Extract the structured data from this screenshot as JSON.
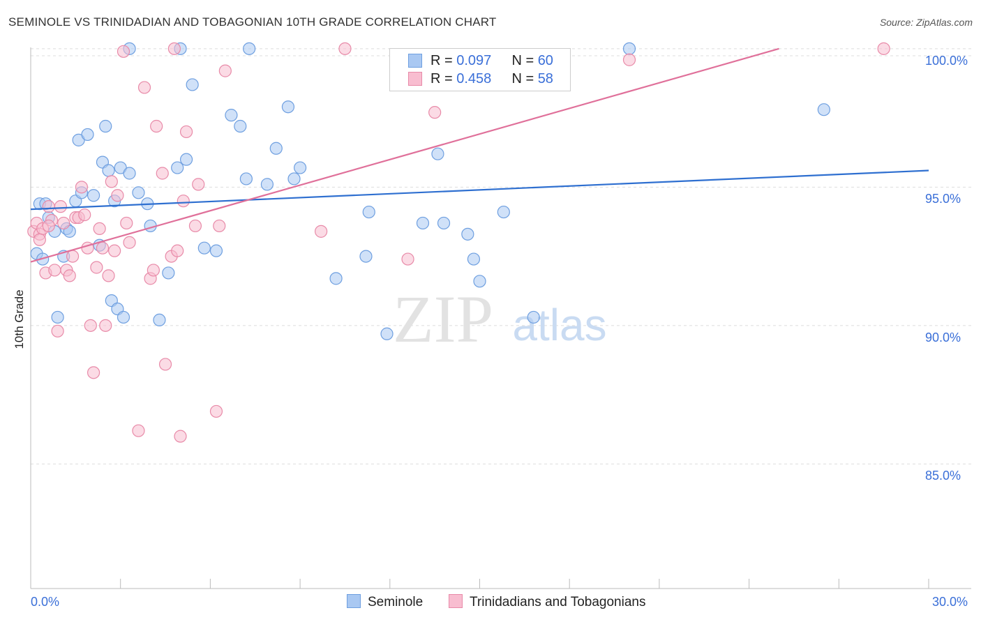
{
  "title": "SEMINOLE VS TRINIDADIAN AND TOBAGONIAN 10TH GRADE CORRELATION CHART",
  "source": "Source: ZipAtlas.com",
  "watermark": {
    "zip": "ZIP",
    "atlas": "atlas"
  },
  "legend": {
    "r_label": "R = ",
    "n_label": "N = ",
    "series": [
      {
        "name": "Seminole",
        "r": "0.097",
        "n": "60"
      },
      {
        "name": "Trinidadians and Tobagonians",
        "r": "0.458",
        "n": "58"
      }
    ]
  },
  "colors": {
    "seminole_fill": "#a9c8f2",
    "seminole_stroke": "#6e9fe0",
    "seminole_line": "#2e6fd0",
    "trini_fill": "#f8bdd0",
    "trini_stroke": "#e88aa8",
    "trini_line": "#e0709a",
    "axis_label": "#3a6fd8",
    "grid": "#dddddd"
  },
  "chart_data": {
    "type": "scatter",
    "title": "SEMINOLE VS TRINIDADIAN AND TOBAGONIAN 10TH GRADE CORRELATION CHART",
    "xlabel": "",
    "ylabel": "10th Grade",
    "xlim": [
      0,
      30
    ],
    "ylim": [
      80.5,
      100.5
    ],
    "x_tick_labels": [
      "0.0%",
      "30.0%"
    ],
    "y_ticks": [
      85,
      90,
      95,
      100
    ],
    "y_tick_labels": [
      "85.0%",
      "90.0%",
      "95.0%",
      "100.0%"
    ],
    "series": [
      {
        "name": "Seminole",
        "trend": {
          "x": [
            0,
            30
          ],
          "y": [
            94.2,
            95.6
          ]
        },
        "points": [
          [
            0.2,
            92.6
          ],
          [
            0.3,
            94.4
          ],
          [
            0.4,
            92.4
          ],
          [
            0.5,
            94.4
          ],
          [
            0.6,
            93.9
          ],
          [
            0.8,
            93.4
          ],
          [
            0.9,
            90.3
          ],
          [
            1.1,
            92.5
          ],
          [
            1.2,
            93.5
          ],
          [
            1.3,
            93.4
          ],
          [
            1.5,
            94.5
          ],
          [
            1.6,
            96.7
          ],
          [
            1.7,
            94.8
          ],
          [
            1.9,
            96.9
          ],
          [
            2.1,
            94.7
          ],
          [
            2.3,
            92.9
          ],
          [
            2.4,
            95.9
          ],
          [
            2.5,
            97.2
          ],
          [
            2.6,
            95.6
          ],
          [
            2.7,
            90.9
          ],
          [
            2.8,
            94.5
          ],
          [
            2.9,
            90.6
          ],
          [
            3.0,
            95.7
          ],
          [
            3.1,
            90.3
          ],
          [
            3.3,
            95.5
          ],
          [
            3.3,
            100.0
          ],
          [
            3.6,
            94.8
          ],
          [
            3.9,
            94.4
          ],
          [
            4.0,
            93.6
          ],
          [
            4.3,
            90.2
          ],
          [
            4.6,
            91.9
          ],
          [
            4.9,
            95.7
          ],
          [
            5.0,
            100.0
          ],
          [
            5.2,
            96.0
          ],
          [
            5.4,
            98.7
          ],
          [
            5.8,
            92.8
          ],
          [
            6.2,
            92.7
          ],
          [
            6.7,
            97.6
          ],
          [
            7.0,
            97.2
          ],
          [
            7.2,
            95.3
          ],
          [
            7.3,
            100.0
          ],
          [
            7.9,
            95.1
          ],
          [
            8.2,
            96.4
          ],
          [
            8.6,
            97.9
          ],
          [
            8.8,
            95.3
          ],
          [
            9.0,
            95.7
          ],
          [
            10.2,
            91.7
          ],
          [
            11.2,
            92.5
          ],
          [
            11.3,
            94.1
          ],
          [
            11.9,
            89.7
          ],
          [
            13.1,
            93.7
          ],
          [
            13.6,
            96.2
          ],
          [
            13.8,
            93.7
          ],
          [
            14.6,
            93.3
          ],
          [
            14.8,
            92.4
          ],
          [
            15.0,
            91.6
          ],
          [
            15.8,
            94.1
          ],
          [
            16.8,
            90.3
          ],
          [
            20.0,
            100.0
          ],
          [
            26.5,
            97.8
          ]
        ]
      },
      {
        "name": "Trinidadians and Tobagonians",
        "trend": {
          "x": [
            0,
            25
          ],
          "y": [
            92.3,
            100.0
          ]
        },
        "points": [
          [
            0.1,
            93.4
          ],
          [
            0.2,
            93.7
          ],
          [
            0.3,
            93.3
          ],
          [
            0.4,
            93.5
          ],
          [
            0.5,
            91.9
          ],
          [
            0.6,
            94.3
          ],
          [
            0.7,
            93.8
          ],
          [
            0.8,
            92.0
          ],
          [
            0.9,
            89.8
          ],
          [
            1.0,
            94.3
          ],
          [
            1.1,
            93.7
          ],
          [
            1.2,
            92.0
          ],
          [
            1.3,
            91.8
          ],
          [
            1.4,
            92.5
          ],
          [
            1.5,
            93.9
          ],
          [
            1.6,
            93.9
          ],
          [
            1.7,
            95.0
          ],
          [
            1.8,
            94.0
          ],
          [
            1.9,
            92.8
          ],
          [
            2.0,
            90.0
          ],
          [
            2.1,
            88.3
          ],
          [
            2.2,
            92.1
          ],
          [
            2.3,
            93.5
          ],
          [
            2.4,
            92.8
          ],
          [
            2.5,
            90.0
          ],
          [
            2.6,
            91.8
          ],
          [
            2.7,
            95.2
          ],
          [
            2.8,
            92.7
          ],
          [
            2.9,
            94.7
          ],
          [
            3.1,
            99.9
          ],
          [
            3.2,
            93.7
          ],
          [
            3.3,
            93.0
          ],
          [
            3.6,
            86.2
          ],
          [
            3.8,
            98.6
          ],
          [
            4.0,
            91.7
          ],
          [
            4.1,
            92.0
          ],
          [
            4.2,
            97.2
          ],
          [
            4.4,
            95.5
          ],
          [
            4.5,
            88.6
          ],
          [
            4.7,
            92.5
          ],
          [
            4.8,
            100.0
          ],
          [
            4.9,
            92.7
          ],
          [
            5.0,
            86.0
          ],
          [
            5.1,
            94.5
          ],
          [
            5.2,
            97.0
          ],
          [
            5.5,
            93.6
          ],
          [
            5.6,
            95.1
          ],
          [
            6.2,
            86.9
          ],
          [
            6.3,
            93.6
          ],
          [
            6.5,
            99.2
          ],
          [
            9.7,
            93.4
          ],
          [
            10.5,
            100.0
          ],
          [
            12.6,
            92.4
          ],
          [
            13.5,
            97.7
          ],
          [
            20.0,
            99.6
          ],
          [
            28.5,
            100.0
          ],
          [
            0.3,
            93.1
          ],
          [
            0.6,
            93.6
          ]
        ]
      }
    ]
  }
}
